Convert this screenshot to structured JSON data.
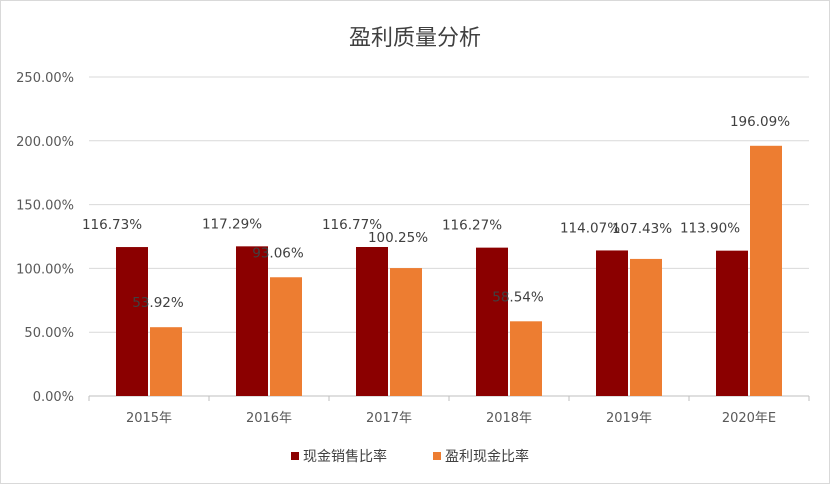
{
  "chart_data": {
    "type": "bar",
    "title": "盈利质量分析",
    "categories": [
      "2015年",
      "2016年",
      "2017年",
      "2018年",
      "2019年",
      "2020年E"
    ],
    "series": [
      {
        "name": "现金销售比率",
        "color": "#8b0000",
        "values": [
          116.73,
          117.29,
          116.77,
          116.27,
          114.07,
          113.9
        ],
        "labels": [
          "116.73%",
          "117.29%",
          "116.77%",
          "116.27%",
          "114.07%",
          "113.90%"
        ]
      },
      {
        "name": "盈利现金比率",
        "color": "#ed7d31",
        "values": [
          53.92,
          93.06,
          100.25,
          58.54,
          107.43,
          196.09
        ],
        "labels": [
          "53.92%",
          "93.06%",
          "100.25%",
          "58.54%",
          "107.43%",
          "196.09%"
        ]
      }
    ],
    "ylim": [
      0,
      250
    ],
    "yticks": [
      0,
      50,
      100,
      150,
      200,
      250
    ],
    "ytick_labels": [
      "0.00%",
      "50.00%",
      "100.00%",
      "150.00%",
      "200.00%",
      "250.00%"
    ],
    "grid": true,
    "legend": "bottom",
    "gridline_color": "#d9d9d9"
  }
}
